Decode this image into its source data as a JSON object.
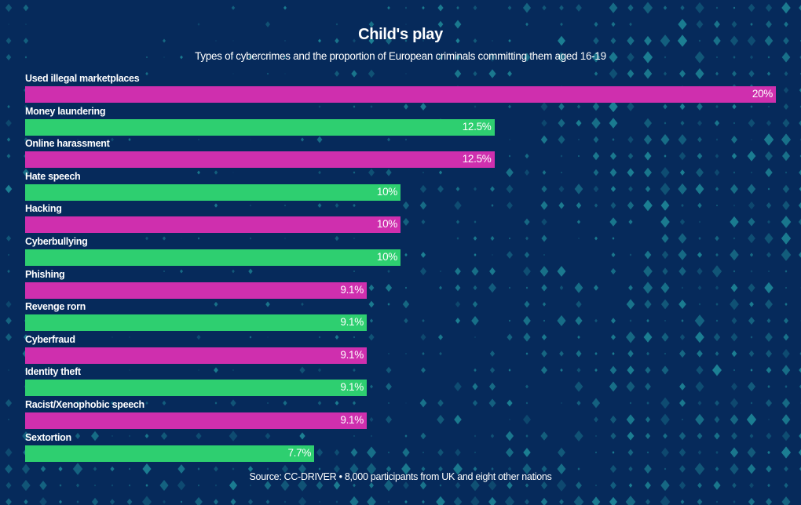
{
  "colors": {
    "background": "#062a5b",
    "pink": "#cf2fae",
    "green": "#2ecf70",
    "diamond": "#1f8a9a"
  },
  "chart_data": {
    "type": "bar",
    "orientation": "horizontal",
    "title": "Child's play",
    "subtitle": "Types of cybercrimes and the proportion of European criminals committing them aged 16-19",
    "source": "Source: CC-DRIVER • 8,000 participants from UK and eight other nations",
    "xlim": [
      0,
      20
    ],
    "grid": false,
    "categories": [
      "Used illegal marketplaces",
      "Money laundering",
      "Online harassment",
      "Hate speech",
      "Hacking",
      "Cyberbullying",
      "Phishing",
      "Revenge rorn",
      "Cyberfraud",
      "Identity theft",
      "Racist/Xenophobic speech",
      "Sextortion"
    ],
    "values": [
      20,
      12.5,
      12.5,
      10,
      10,
      10,
      9.1,
      9.1,
      9.1,
      9.1,
      9.1,
      7.7
    ],
    "labels": [
      "20%",
      "12.5%",
      "12.5%",
      "10%",
      "10%",
      "10%",
      "9.1%",
      "9.1%",
      "9.1%",
      "9.1%",
      "9.1%",
      "7.7%"
    ]
  }
}
